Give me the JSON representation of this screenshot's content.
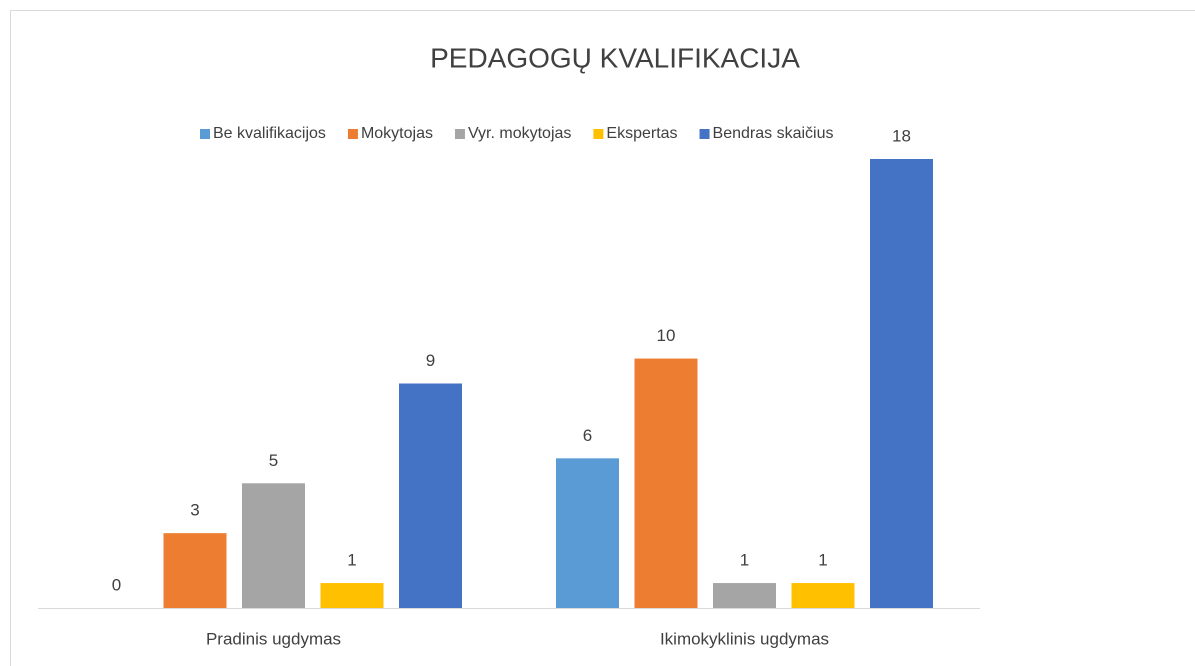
{
  "chart_data": {
    "type": "bar",
    "title": "PEDAGOGŲ KVALIFIKACIJA",
    "categories": [
      "Pradinis ugdymas",
      "Ikimokyklinis ugdymas"
    ],
    "series": [
      {
        "name": "Be kvalifikacijos",
        "color": "#5b9bd5",
        "values": [
          0,
          6
        ]
      },
      {
        "name": "Mokytojas",
        "color": "#ed7d31",
        "values": [
          3,
          10
        ]
      },
      {
        "name": "Vyr. mokytojas",
        "color": "#a5a5a5",
        "values": [
          5,
          1
        ]
      },
      {
        "name": "Ekspertas",
        "color": "#ffc000",
        "values": [
          1,
          1
        ]
      },
      {
        "name": "Bendras skaičius",
        "color": "#4472c4",
        "values": [
          9,
          18
        ]
      }
    ],
    "legend": "top"
  }
}
